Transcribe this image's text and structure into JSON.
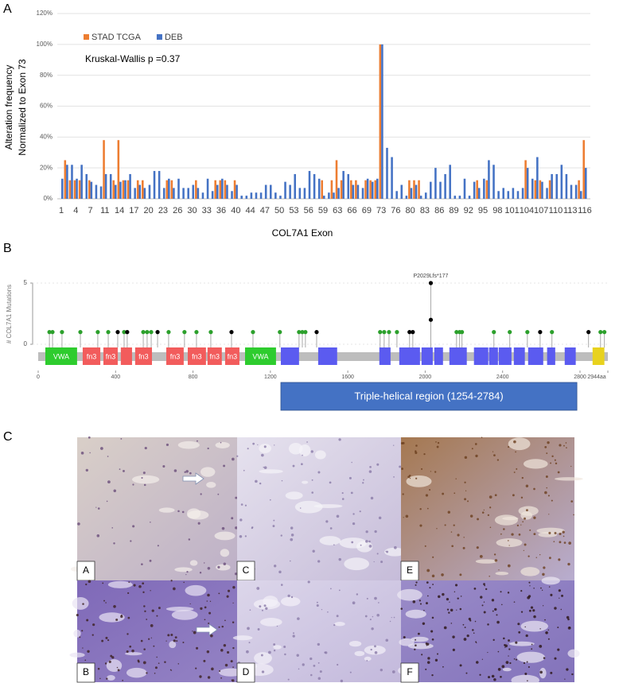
{
  "panel_labels": [
    "A",
    "B",
    "C"
  ],
  "chart_data": [
    {
      "type": "bar",
      "y_label": [
        "Alteration frequency",
        "Normalized to Exon 73"
      ],
      "x_label": "COL7A1 Exon",
      "annotation": "Kruskal-Wallis p =0.37",
      "legend": "upper left",
      "grid": true,
      "categories": [
        1,
        null,
        null,
        4,
        null,
        null,
        7,
        null,
        null,
        11,
        null,
        null,
        14,
        null,
        null,
        17,
        null,
        null,
        20,
        null,
        null,
        23,
        null,
        null,
        26,
        null,
        null,
        30,
        null,
        null,
        33,
        null,
        null,
        36,
        null,
        null,
        40,
        null,
        null,
        44,
        null,
        null,
        47,
        null,
        null,
        50,
        null,
        null,
        53,
        null,
        null,
        56,
        null,
        null,
        59,
        null,
        null,
        63,
        null,
        null,
        66,
        null,
        null,
        69,
        null,
        null,
        73,
        null,
        null,
        76,
        null,
        null,
        80,
        null,
        null,
        83,
        null,
        null,
        86,
        null,
        null,
        89,
        null,
        null,
        92,
        null,
        null,
        95,
        null,
        null,
        98,
        null,
        null,
        101,
        null,
        null,
        104,
        null,
        null,
        107,
        null,
        null,
        110,
        null,
        null,
        113,
        null,
        null,
        116
      ],
      "ylim": [
        0,
        120
      ],
      "yticks": [
        {
          "value": 0,
          "label": "0%"
        },
        {
          "value": 20,
          "label": "20%"
        },
        {
          "value": 40,
          "label": "40%"
        },
        {
          "value": 60,
          "label": "60%"
        },
        {
          "value": 80,
          "label": "80%"
        },
        {
          "value": 100,
          "label": "100%"
        },
        {
          "value": 120,
          "label": "120%"
        }
      ],
      "series": [
        {
          "name": "STAD TCGA",
          "color": "#ed7d31",
          "values": [
            0,
            25,
            12,
            12,
            12,
            0,
            12,
            0,
            0,
            38,
            0,
            12,
            38,
            12,
            12,
            0,
            12,
            12,
            0,
            0,
            0,
            0,
            12,
            12,
            0,
            0,
            0,
            0,
            12,
            0,
            0,
            0,
            12,
            12,
            12,
            0,
            12,
            0,
            0,
            0,
            0,
            0,
            0,
            0,
            0,
            0,
            0,
            0,
            0,
            0,
            0,
            0,
            0,
            0,
            12,
            0,
            12,
            25,
            12,
            0,
            12,
            12,
            0,
            12,
            12,
            12,
            100,
            0,
            0,
            0,
            0,
            0,
            12,
            12,
            12,
            0,
            0,
            0,
            0,
            0,
            0,
            0,
            0,
            0,
            0,
            0,
            12,
            0,
            12,
            0,
            0,
            0,
            0,
            0,
            0,
            0,
            25,
            0,
            12,
            12,
            0,
            12,
            0,
            0,
            0,
            0,
            0,
            12,
            38
          ]
        },
        {
          "name": "DEB",
          "color": "#4472c4",
          "values": [
            13,
            22,
            22,
            13,
            22,
            16,
            11,
            9,
            8,
            16,
            16,
            9,
            11,
            12,
            16,
            7,
            9,
            7,
            9,
            18,
            18,
            7,
            13,
            7,
            13,
            7,
            7,
            9,
            7,
            4,
            13,
            5,
            9,
            13,
            9,
            5,
            9,
            2,
            2,
            4,
            4,
            4,
            9,
            9,
            4,
            2,
            11,
            9,
            16,
            7,
            7,
            18,
            16,
            13,
            2,
            4,
            4,
            7,
            18,
            16,
            9,
            9,
            7,
            13,
            11,
            13,
            100,
            33,
            27,
            5,
            9,
            2,
            7,
            9,
            2,
            4,
            11,
            20,
            11,
            16,
            22,
            2,
            2,
            13,
            2,
            11,
            7,
            13,
            25,
            22,
            5,
            7,
            5,
            7,
            5,
            7,
            20,
            13,
            27,
            11,
            7,
            16,
            16,
            22,
            16,
            9,
            9,
            5,
            20
          ]
        }
      ]
    },
    {
      "type": "lollipop",
      "y_label": "# COL7A1 Mutations",
      "xlim": [
        0,
        2944
      ],
      "xticks": [
        0,
        400,
        800,
        1200,
        1600,
        2000,
        2400,
        2800,
        {
          "value": 2944,
          "label": "2944aa"
        }
      ],
      "ylim": [
        0,
        5
      ],
      "yticks": [
        0,
        5
      ],
      "x": [
        58,
        74,
        123,
        218,
        308,
        362,
        411,
        444,
        460,
        543,
        563,
        584,
        617,
        674,
        756,
        818,
        892,
        999,
        1110,
        1249,
        1348,
        1365,
        1381,
        1439,
        1767,
        1788,
        1813,
        1854,
        1919,
        1936,
        2029,
        2029,
        2162,
        2178,
        2190,
        2355,
        2437,
        2528,
        2594,
        2655,
        2844,
        2906,
        2926
      ],
      "values": [
        1,
        1,
        1,
        1,
        1,
        1,
        1,
        1,
        1,
        1,
        1,
        1,
        1,
        1,
        1,
        1,
        1,
        1,
        1,
        1,
        1,
        1,
        1,
        1,
        1,
        1,
        1,
        1,
        1,
        1,
        2,
        5,
        1,
        1,
        1,
        1,
        1,
        1,
        1,
        1,
        1,
        1,
        1
      ],
      "colors": [
        "#2ca02c",
        "#2ca02c",
        "#2ca02c",
        "#2ca02c",
        "#2ca02c",
        "#2ca02c",
        "#000000",
        "#2ca02c",
        "#000000",
        "#2ca02c",
        "#2ca02c",
        "#2ca02c",
        "#000000",
        "#2ca02c",
        "#2ca02c",
        "#2ca02c",
        "#2ca02c",
        "#000000",
        "#2ca02c",
        "#2ca02c",
        "#2ca02c",
        "#2ca02c",
        "#2ca02c",
        "#000000",
        "#2ca02c",
        "#2ca02c",
        "#2ca02c",
        "#2ca02c",
        "#000000",
        "#000000",
        "#000000",
        "#000000",
        "#2ca02c",
        "#2ca02c",
        "#2ca02c",
        "#2ca02c",
        "#2ca02c",
        "#2ca02c",
        "#000000",
        "#2ca02c",
        "#000000",
        "#2ca02c",
        "#2ca02c"
      ],
      "labels": [
        null,
        null,
        null,
        null,
        null,
        null,
        null,
        null,
        null,
        null,
        null,
        null,
        null,
        null,
        null,
        null,
        null,
        null,
        null,
        null,
        null,
        null,
        null,
        null,
        null,
        null,
        null,
        null,
        null,
        null,
        null,
        "P2029Lfs*177",
        null,
        null,
        null,
        null,
        null,
        null,
        null,
        null,
        null,
        null,
        null
      ],
      "domains": [
        {
          "label": "VWA",
          "start": 37,
          "end": 201,
          "color": "#2ecc2e"
        },
        {
          "label": "fn3",
          "start": 230,
          "end": 321,
          "color": "#f25c5c"
        },
        {
          "label": "fn3",
          "start": 337,
          "end": 411,
          "color": "#f25c5c"
        },
        {
          "start": 427,
          "end": 485,
          "color": "#f25c5c"
        },
        {
          "label": "fn3",
          "start": 501,
          "end": 588,
          "color": "#f25c5c"
        },
        {
          "label": "fn3",
          "start": 662,
          "end": 752,
          "color": "#f25c5c"
        },
        {
          "label": "fn3",
          "start": 773,
          "end": 867,
          "color": "#f25c5c"
        },
        {
          "label": "fn3",
          "start": 875,
          "end": 949,
          "color": "#f25c5c"
        },
        {
          "label": "fn3",
          "start": 966,
          "end": 1040,
          "color": "#f25c5c"
        },
        {
          "label": "VWA",
          "start": 1069,
          "end": 1229,
          "color": "#2ecc2e"
        },
        {
          "start": 1254,
          "end": 1348,
          "color": "#5b5bf0"
        },
        {
          "start": 1447,
          "end": 1545,
          "color": "#5b5bf0"
        },
        {
          "start": 1763,
          "end": 1821,
          "color": "#5b5bf0"
        },
        {
          "start": 1866,
          "end": 1973,
          "color": "#5b5bf0"
        },
        {
          "start": 1981,
          "end": 2039,
          "color": "#5b5bf0"
        },
        {
          "start": 2047,
          "end": 2092,
          "color": "#5b5bf0"
        },
        {
          "start": 2125,
          "end": 2215,
          "color": "#5b5bf0"
        },
        {
          "start": 2252,
          "end": 2326,
          "color": "#5b5bf0"
        },
        {
          "start": 2330,
          "end": 2376,
          "color": "#5b5bf0"
        },
        {
          "start": 2380,
          "end": 2446,
          "color": "#5b5bf0"
        },
        {
          "start": 2458,
          "end": 2515,
          "color": "#5b5bf0"
        },
        {
          "start": 2532,
          "end": 2610,
          "color": "#5b5bf0"
        },
        {
          "start": 2630,
          "end": 2672,
          "color": "#5b5bf0"
        },
        {
          "start": 2721,
          "end": 2778,
          "color": "#5b5bf0"
        },
        {
          "start": 2865,
          "end": 2926,
          "color": "#e8d21e"
        }
      ],
      "region": {
        "label": "Triple-helical region (1254-2784)",
        "start": 1254,
        "end": 2784,
        "color": "#4472c4"
      }
    }
  ],
  "images": {
    "labels": [
      "A",
      "C",
      "E",
      "B",
      "D",
      "F"
    ]
  }
}
